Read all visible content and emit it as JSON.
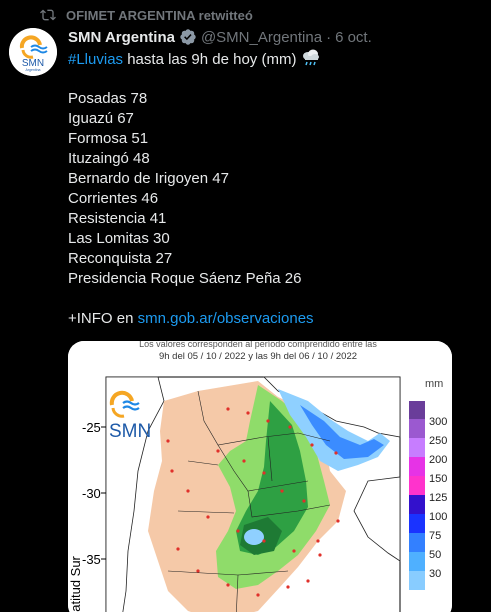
{
  "retweet": {
    "text": "OFIMET ARGENTINA retwitteó"
  },
  "author": {
    "name": "SMN Argentina",
    "handle": "@SMN_Argentina",
    "separator": "·",
    "date": "6 oct.",
    "avatar_text": "SMN",
    "avatar_subtext": "Argentina"
  },
  "tweet": {
    "hashtag": "#Lluvias",
    "intro": " hasta las 9h de hoy (mm)",
    "emoji": "cloud-rain-icon",
    "stations": [
      "Posadas 78",
      "Iguazú 67",
      "Formosa 51",
      "Ituzaingó 48",
      "Bernardo de Irigoyen 47",
      "Corrientes 46",
      "Resistencia 41",
      "Las Lomitas 30",
      "Reconquista 27",
      "Presidencia Roque Sáenz Peña 26"
    ],
    "info_prefix": "+INFO en ",
    "info_link": "smn.gob.ar/observaciones"
  },
  "map": {
    "caption_line1": "Los valores corresponden al período comprendido entre las",
    "caption_line2": "9h del 05 / 10 / 2022  y las 9h del 06 / 10 / 2022",
    "logo_text": "SMN",
    "y_ticks": [
      "-25",
      "-30",
      "-35"
    ],
    "y_axis_label": "Latitud Sur",
    "legend_unit": "mm",
    "legend_values": [
      "300",
      "250",
      "200",
      "150",
      "125",
      "100",
      "75",
      "50",
      "30"
    ],
    "legend_colors": [
      "#6a3d9a",
      "#9b59d0",
      "#c77dff",
      "#e633e6",
      "#ff33cc",
      "#3311cc",
      "#1a33ff",
      "#3380ff",
      "#4fb0ff",
      "#88ccff"
    ],
    "colors": {
      "light_rain": "#f5c9a8",
      "moderate": "#8fdc6a",
      "heavy": "#2ea043",
      "very_heavy": "#1e7a34",
      "blue_light": "#8fd0ff",
      "blue": "#3b8cff"
    }
  }
}
